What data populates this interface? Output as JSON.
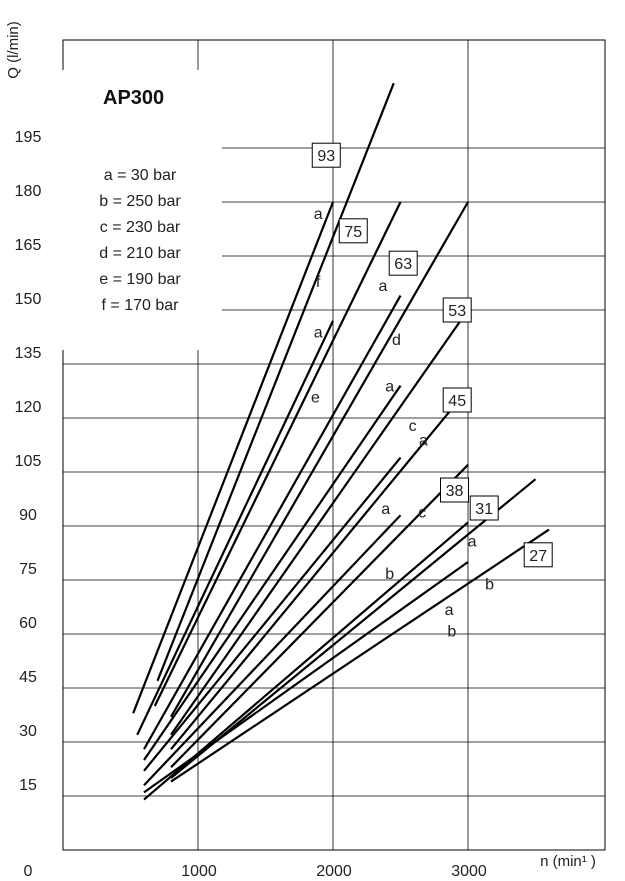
{
  "chart_data": {
    "type": "line",
    "title": "AP300",
    "xlabel": "n (min¹ )",
    "ylabel": "Q (l/min)",
    "xlim": [
      0,
      3000
    ],
    "ylim": [
      0,
      210
    ],
    "x_ticks": [
      "1000",
      "2000",
      "3000"
    ],
    "y_ticks": [
      "0",
      "15",
      "30",
      "45",
      "60",
      "75",
      "90",
      "105",
      "120",
      "135",
      "150",
      "165",
      "180",
      "195"
    ],
    "grid": true,
    "legend": [
      "a =  30 bar",
      "b = 250 bar",
      "c = 230 bar",
      "d = 210 bar",
      "e = 190 bar",
      "f = 170 bar"
    ],
    "series": [
      {
        "name": "93",
        "segments": [
          {
            "x": [
              520,
              2000
            ],
            "y": [
              38,
              180
            ],
            "label": "f"
          },
          {
            "x": [
              700,
              2450
            ],
            "y": [
              47,
              213
            ],
            "label": "a"
          }
        ]
      },
      {
        "name": "75",
        "segments": [
          {
            "x": [
              550,
              2000
            ],
            "y": [
              32,
              147
            ],
            "label": "e"
          },
          {
            "x": [
              680,
              2500
            ],
            "y": [
              40,
              180
            ],
            "label": "a"
          }
        ]
      },
      {
        "name": "63",
        "segments": [
          {
            "x": [
              600,
              2500
            ],
            "y": [
              28,
              154
            ],
            "label": "d"
          },
          {
            "x": [
              800,
              3000
            ],
            "y": [
              37,
              180
            ],
            "label": "a"
          }
        ]
      },
      {
        "name": "53",
        "segments": [
          {
            "x": [
              600,
              2500
            ],
            "y": [
              25,
              129
            ],
            "label": "c"
          },
          {
            "x": [
              800,
              3000
            ],
            "y": [
              32,
              150
            ],
            "label": "a"
          }
        ]
      },
      {
        "name": "45",
        "segments": [
          {
            "x": [
              600,
              2500
            ],
            "y": [
              22,
              109
            ],
            "label": "c"
          },
          {
            "x": [
              800,
              3000
            ],
            "y": [
              28,
              128
            ],
            "label": "a"
          }
        ]
      },
      {
        "name": "38",
        "segments": [
          {
            "x": [
              600,
              2500
            ],
            "y": [
              18,
              93
            ],
            "label": "b"
          },
          {
            "x": [
              800,
              3000
            ],
            "y": [
              23,
              107
            ],
            "label": "a"
          }
        ]
      },
      {
        "name": "31",
        "segments": [
          {
            "x": [
              600,
              3000
            ],
            "y": [
              16,
              80
            ],
            "label": "b"
          },
          {
            "x": [
              800,
              3500
            ],
            "y": [
              20,
              103
            ],
            "label": "a"
          }
        ]
      },
      {
        "name": "27",
        "segments": [
          {
            "x": [
              600,
              3000
            ],
            "y": [
              14,
              91
            ],
            "label": "b"
          },
          {
            "x": [
              800,
              3600
            ],
            "y": [
              19,
              89
            ],
            "label": "a"
          }
        ]
      }
    ],
    "annotations": [
      {
        "text": "93",
        "boxed": true,
        "x": 1950,
        "y": 193
      },
      {
        "text": "75",
        "boxed": true,
        "x": 2150,
        "y": 172
      },
      {
        "text": "63",
        "boxed": true,
        "x": 2520,
        "y": 163
      },
      {
        "text": "53",
        "boxed": true,
        "x": 2920,
        "y": 150
      },
      {
        "text": "45",
        "boxed": true,
        "x": 2920,
        "y": 125
      },
      {
        "text": "38",
        "boxed": true,
        "x": 2900,
        "y": 100
      },
      {
        "text": "31",
        "boxed": true,
        "x": 3120,
        "y": 95
      },
      {
        "text": "27",
        "boxed": true,
        "x": 3520,
        "y": 82
      },
      {
        "text": "a",
        "x": 1890,
        "y": 177
      },
      {
        "text": "f",
        "x": 1890,
        "y": 158
      },
      {
        "text": "a",
        "x": 1890,
        "y": 144
      },
      {
        "text": "e",
        "x": 1870,
        "y": 126
      },
      {
        "text": "a",
        "x": 2370,
        "y": 157
      },
      {
        "text": "d",
        "x": 2470,
        "y": 142
      },
      {
        "text": "a",
        "x": 2420,
        "y": 129
      },
      {
        "text": "c",
        "x": 2590,
        "y": 118
      },
      {
        "text": "a",
        "x": 2670,
        "y": 114
      },
      {
        "text": "c",
        "x": 2660,
        "y": 94
      },
      {
        "text": "a",
        "x": 2390,
        "y": 95
      },
      {
        "text": "b",
        "x": 2420,
        "y": 77
      },
      {
        "text": "a",
        "x": 3030,
        "y": 86
      },
      {
        "text": "b",
        "x": 3160,
        "y": 74
      },
      {
        "text": "a",
        "x": 2860,
        "y": 67
      },
      {
        "text": "b",
        "x": 2880,
        "y": 61
      }
    ]
  }
}
